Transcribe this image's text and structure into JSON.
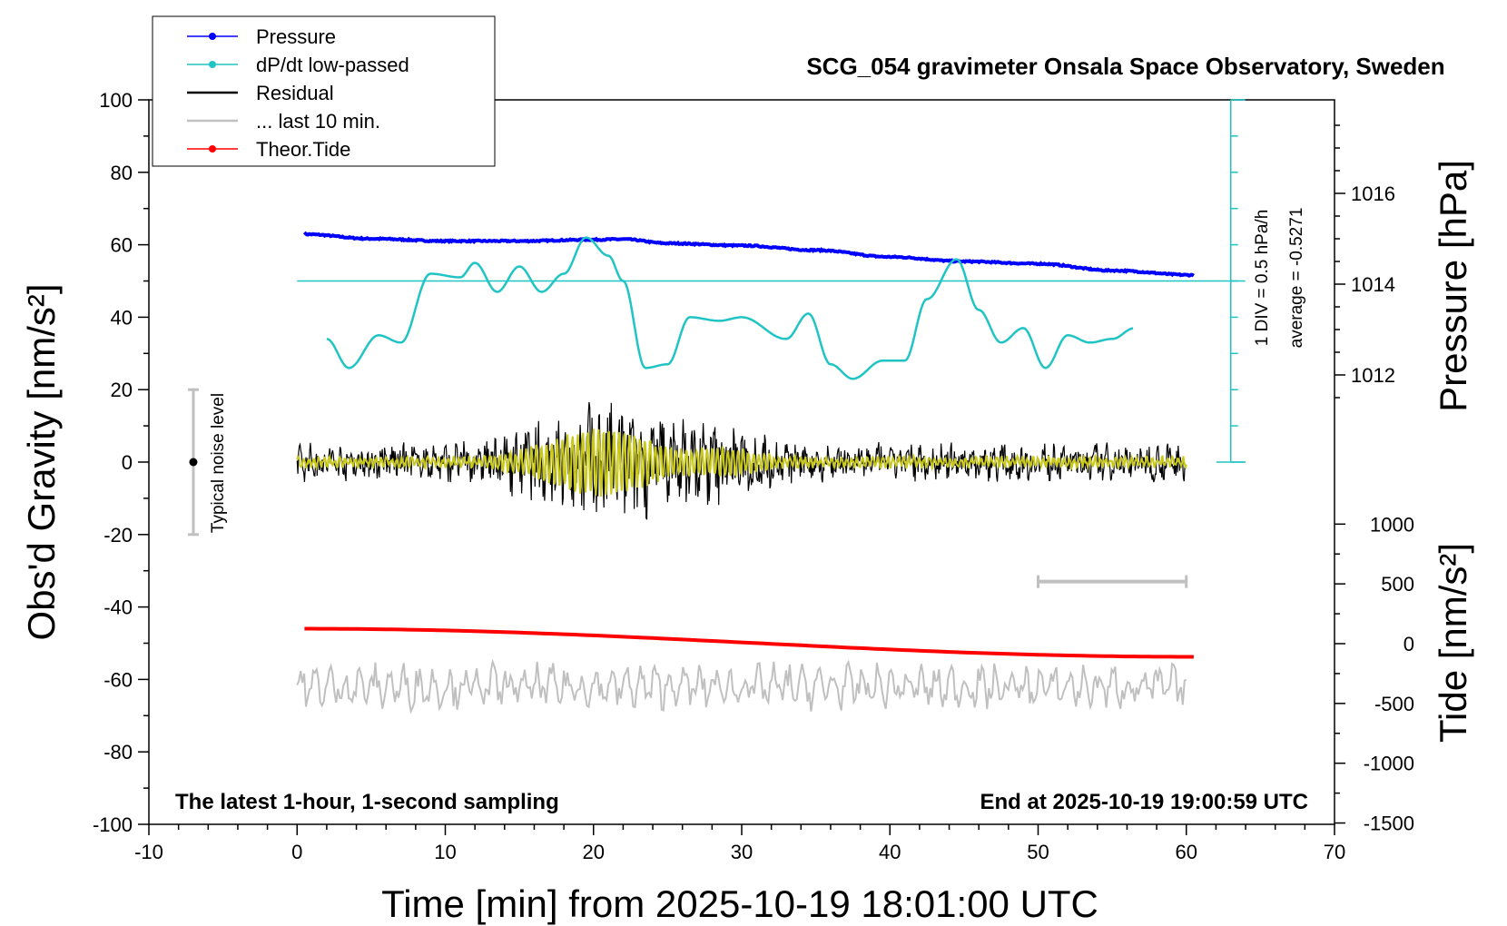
{
  "chart_data": {
    "type": "line",
    "title": "SCG_054 gravimeter Onsala Space Observatory, Sweden",
    "xlabel": "Time [min] from 2025-10-19 18:01:00 UTC",
    "ylabel": "Obs'd Gravity [nm/s²]",
    "y2label": "Pressure [hPa]",
    "y3label": "Tide [nm/s²]",
    "xlim": [
      -10,
      70
    ],
    "ylim": [
      -100,
      100
    ],
    "x_ticks": [
      "-10",
      "0",
      "10",
      "20",
      "30",
      "40",
      "50",
      "60",
      "70"
    ],
    "y_ticks": [
      "100",
      "80",
      "60",
      "40",
      "20",
      "0",
      "-20",
      "-40",
      "-60",
      "-80",
      "-100"
    ],
    "pressure_ticks": [
      "1016",
      "1014",
      "1012"
    ],
    "tide_ticks": [
      "1000",
      "500",
      "0",
      "-500",
      "-1000",
      "-1500"
    ],
    "legend": {
      "placement": "top-left",
      "entries": [
        "Pressure",
        "dP/dt low-passed",
        "Residual",
        "... last 10 min.",
        "Theor.Tide"
      ]
    },
    "annotations": {
      "noise": "Typical noise level",
      "left_note": "The latest 1-hour, 1-second sampling",
      "right_note": "End at 2025-10-19 19:00:59 UTC",
      "div": "1 DIV = 0.5 hPa/h",
      "average": "average = -0.5271"
    },
    "colors": {
      "pressure": "#0000ff",
      "dpdt": "#20c4c4",
      "residual": "#000000",
      "residual_filtered": "#c8c81e",
      "last10": "#c0c0c0",
      "tide": "#ff0000"
    },
    "series": [
      {
        "name": "Pressure",
        "unit": "hPa",
        "x": [
          0.5,
          5,
          10,
          15,
          20,
          22,
          25,
          30,
          35,
          40,
          45,
          50,
          55,
          60.5
        ],
        "values": [
          1015.1,
          1015.0,
          1014.95,
          1014.95,
          1014.98,
          1014.99,
          1014.9,
          1014.85,
          1014.75,
          1014.6,
          1014.5,
          1014.45,
          1014.3,
          1014.2
        ]
      },
      {
        "name": "dP/dt low-passed",
        "unit": "nm/s² display",
        "x": [
          2,
          3.5,
          5.5,
          7,
          9,
          11,
          12,
          13.5,
          15,
          16.5,
          18,
          19.5,
          21,
          22,
          23.5,
          25,
          26.5,
          28.5,
          30,
          33,
          34.5,
          36,
          37.5,
          39.5,
          41,
          42.5,
          44.5,
          46,
          47.5,
          49,
          50.5,
          52,
          53.5,
          55,
          56.5
        ],
        "values": [
          34,
          26,
          35,
          33,
          52,
          51,
          55,
          47,
          54,
          47,
          52,
          62,
          57,
          50,
          26,
          27,
          40,
          39,
          40,
          34,
          41,
          27,
          23,
          28,
          28,
          45,
          56,
          42,
          33,
          37,
          26,
          35,
          33,
          34,
          37
        ]
      },
      {
        "name": "Residual",
        "unit": "nm/s²",
        "x": [
          0,
          60
        ],
        "values": [
          0,
          0
        ]
      },
      {
        "name": "... last 10 min.",
        "unit": "min span",
        "x": [
          50,
          60
        ],
        "values": [
          -33,
          -33
        ]
      },
      {
        "name": "Theor.Tide",
        "unit": "nm/s²",
        "x": [
          0.5,
          60.5
        ],
        "values": [
          125,
          -110
        ]
      }
    ]
  }
}
